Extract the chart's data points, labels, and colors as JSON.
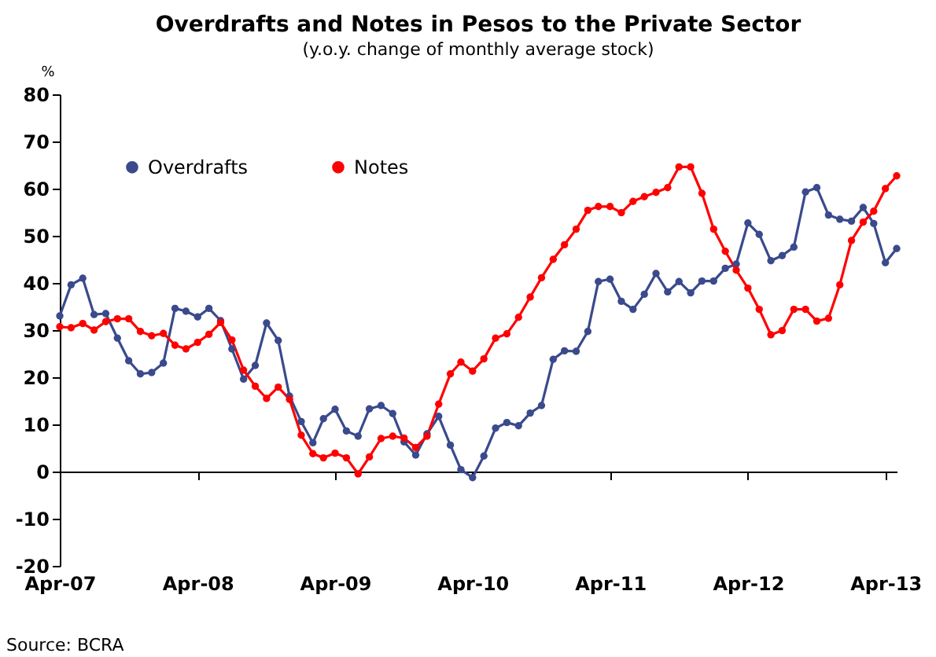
{
  "chart_data": {
    "type": "line",
    "title": "Overdrafts and Notes in Pesos to the Private Sector",
    "subtitle": "(y.o.y. change of monthly average stock)",
    "ylabel": "%",
    "annotations": [
      "Source: BCRA"
    ],
    "x": [
      "2007-04",
      "2007-05",
      "2007-06",
      "2007-07",
      "2007-08",
      "2007-09",
      "2007-10",
      "2007-11",
      "2007-12",
      "2008-01",
      "2008-02",
      "2008-03",
      "2008-04",
      "2008-05",
      "2008-06",
      "2008-07",
      "2008-08",
      "2008-09",
      "2008-10",
      "2008-11",
      "2008-12",
      "2009-01",
      "2009-02",
      "2009-03",
      "2009-04",
      "2009-05",
      "2009-06",
      "2009-07",
      "2009-08",
      "2009-09",
      "2009-10",
      "2009-11",
      "2009-12",
      "2010-01",
      "2010-02",
      "2010-03",
      "2010-04",
      "2010-05",
      "2010-06",
      "2010-07",
      "2010-08",
      "2010-09",
      "2010-10",
      "2010-11",
      "2010-12",
      "2011-01",
      "2011-02",
      "2011-03",
      "2011-04",
      "2011-05",
      "2011-06",
      "2011-07",
      "2011-08",
      "2011-09",
      "2011-10",
      "2011-11",
      "2011-12",
      "2012-01",
      "2012-02",
      "2012-03",
      "2012-04",
      "2012-05",
      "2012-06",
      "2012-07",
      "2012-08",
      "2012-09",
      "2012-10",
      "2012-11",
      "2012-12",
      "2013-01",
      "2013-02",
      "2013-03",
      "2013-04",
      "2013-05"
    ],
    "series": [
      {
        "name": "Overdrafts",
        "color": "#3a4a8c",
        "values": [
          33,
          39.6,
          41,
          33.3,
          33.5,
          28.3,
          23.5,
          20.7,
          21,
          23,
          34.6,
          34,
          32.8,
          34.6,
          32,
          26,
          19.6,
          22.5,
          31.5,
          27.8,
          16,
          10.6,
          6.1,
          11.2,
          13.2,
          8.6,
          7.5,
          13.3,
          14,
          12.3,
          6.3,
          3.5,
          8,
          11.7,
          5.6,
          0.4,
          -1.3,
          3.3,
          9.2,
          10.4,
          9.7,
          12.4,
          14,
          23.8,
          25.6,
          25.5,
          29.7,
          40.3,
          40.8,
          36.1,
          34.4,
          37.6,
          42,
          38.1,
          40.3,
          37.9,
          40.4,
          40.4,
          43.1,
          44,
          52.7,
          50.3,
          44.7,
          45.8,
          47.6,
          59.3,
          60.2,
          54.4,
          53.5,
          53.1,
          56,
          52.6,
          44.3,
          47.3
        ]
      },
      {
        "name": "Notes",
        "color": "#ff0000",
        "values": [
          30.7,
          30.5,
          31.4,
          30,
          31.8,
          32.4,
          32.4,
          29.7,
          28.8,
          29.3,
          26.8,
          26,
          27.4,
          29.1,
          31.6,
          27.9,
          21.5,
          18.1,
          15.5,
          17.9,
          15.3,
          7.7,
          3.8,
          2.9,
          3.9,
          2.9,
          -0.5,
          3.1,
          7,
          7.5,
          7.1,
          5.1,
          7.5,
          14.3,
          20.7,
          23.2,
          21.3,
          23.9,
          28.3,
          29.2,
          32.7,
          37,
          41.1,
          45,
          48.1,
          51.4,
          55.4,
          56.2,
          56.2,
          54.9,
          57.3,
          58.3,
          59.2,
          60.2,
          64.6,
          64.6,
          59,
          51.4,
          46.7,
          42.7,
          38.9,
          34.4,
          29,
          29.9,
          34.4,
          34.4,
          31.9,
          32.5,
          39.6,
          49,
          52.9,
          55.2,
          60,
          62.7
        ]
      }
    ],
    "xlim": [
      "2007-04",
      "2013-05"
    ],
    "xticks": [
      {
        "value": "2007-04",
        "label": "Apr-07"
      },
      {
        "value": "2008-04",
        "label": "Apr-08"
      },
      {
        "value": "2009-04",
        "label": "Apr-09"
      },
      {
        "value": "2010-04",
        "label": "Apr-10"
      },
      {
        "value": "2011-04",
        "label": "Apr-11"
      },
      {
        "value": "2012-04",
        "label": "Apr-12"
      },
      {
        "value": "2013-04",
        "label": "Apr-13"
      }
    ],
    "ylim": [
      -20,
      80
    ],
    "yticks": [
      -20,
      -10,
      0,
      10,
      20,
      30,
      40,
      50,
      60,
      70,
      80
    ],
    "legend": "top left",
    "marker": "circle",
    "line_style": "solid"
  }
}
